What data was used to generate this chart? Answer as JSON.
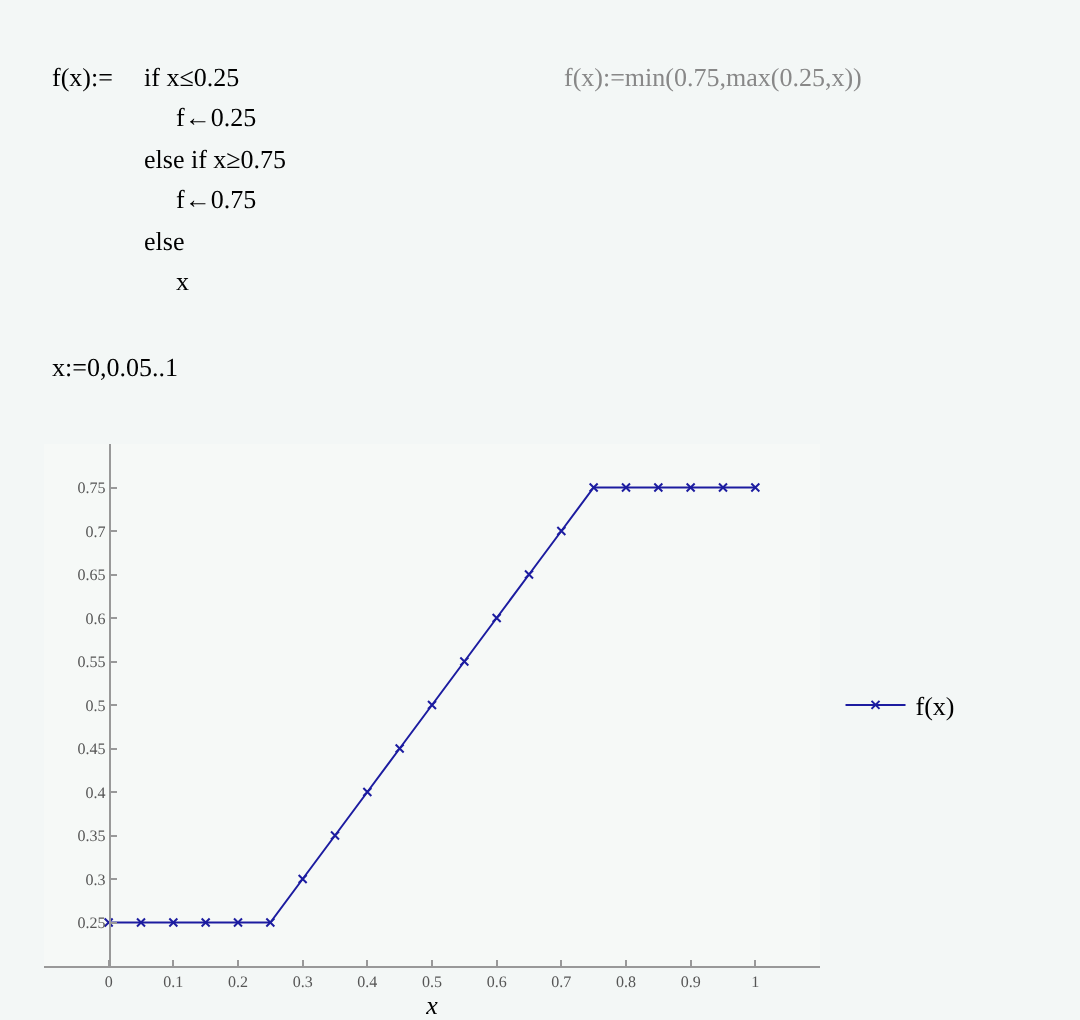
{
  "chart_data": {
    "type": "line",
    "xlabel": "x",
    "x": [
      0,
      0.05,
      0.1,
      0.15,
      0.2,
      0.25,
      0.3,
      0.35,
      0.4,
      0.45,
      0.5,
      0.55,
      0.6,
      0.65,
      0.7,
      0.75,
      0.8,
      0.85,
      0.9,
      0.95,
      1
    ],
    "series": [
      {
        "name": "f(x)",
        "color": "#1c1ca0",
        "values": [
          0.25,
          0.25,
          0.25,
          0.25,
          0.25,
          0.25,
          0.3,
          0.35,
          0.4,
          0.45,
          0.5,
          0.55,
          0.6,
          0.65,
          0.7,
          0.75,
          0.75,
          0.75,
          0.75,
          0.75,
          0.75
        ]
      }
    ],
    "xlim": [
      -0.1,
      1.1
    ],
    "xticks": [
      0,
      0.1,
      0.2,
      0.3,
      0.4,
      0.5,
      0.6,
      0.7,
      0.8,
      0.9,
      1
    ],
    "ylim": [
      0.2,
      0.8
    ],
    "yticks": [
      0.25,
      0.3,
      0.35,
      0.4,
      0.45,
      0.5,
      0.55,
      0.6,
      0.65,
      0.7,
      0.75
    ],
    "grid": false,
    "legend": "right",
    "marker": "cross",
    "line_style": "solid",
    "annotations": [
      "f(x):=",
      "if x≤0.25",
      "f←0.25",
      "else if x≥0.75",
      "f←0.75",
      "else",
      "x",
      "f(x):=min(0.75,max(0.25,x))",
      "x:=0,0.05..1"
    ]
  }
}
